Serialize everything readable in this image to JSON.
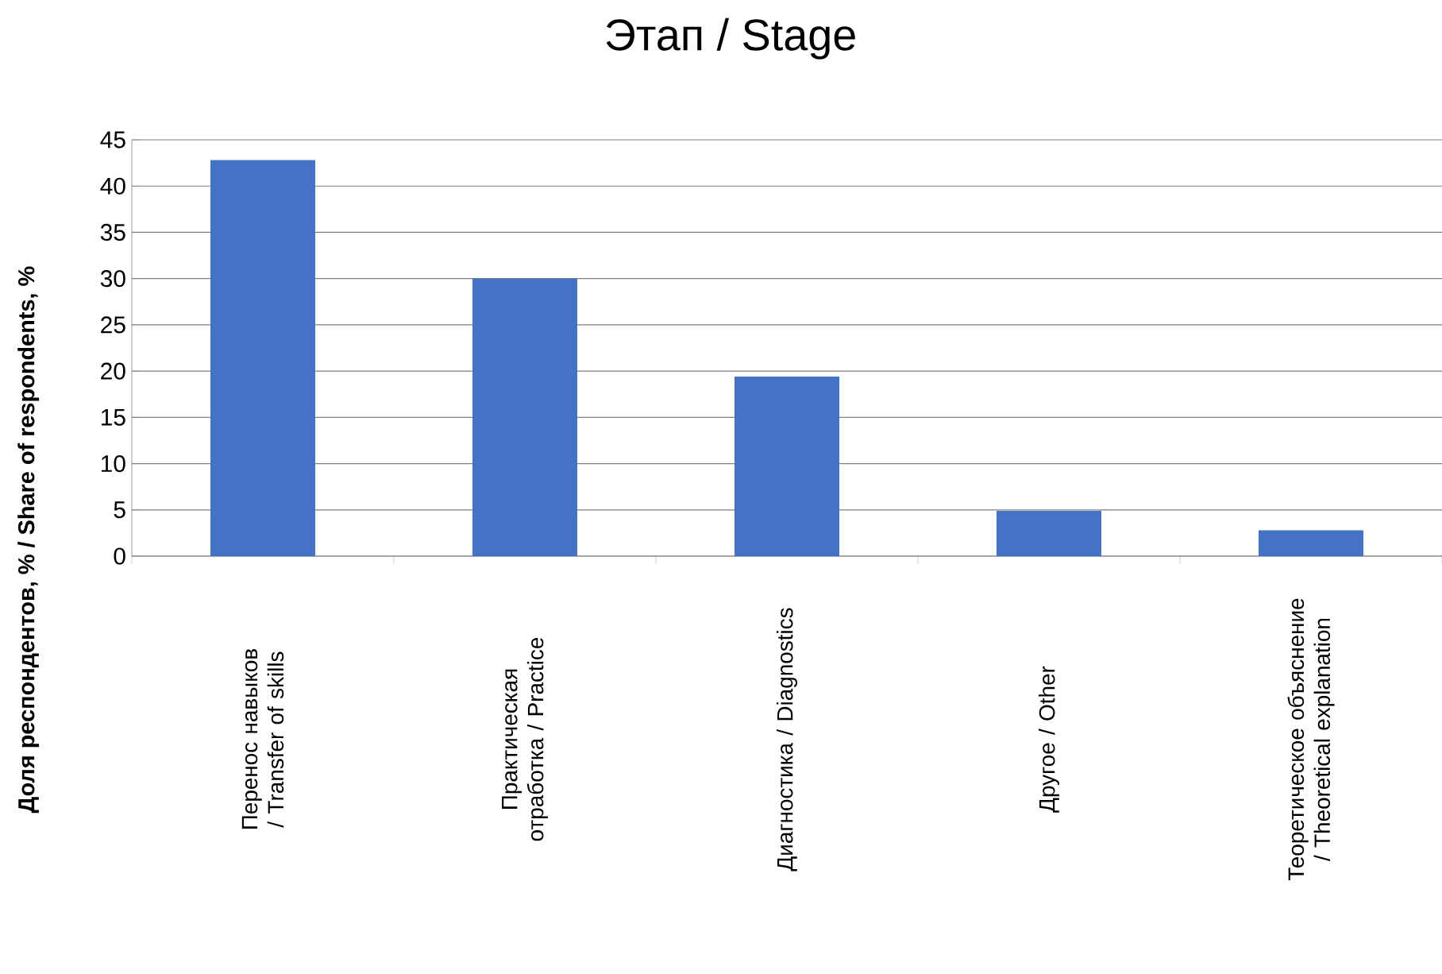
{
  "chart_data": {
    "type": "bar",
    "title": "Этап / Stage",
    "ylabel": "Доля респондентов, % / Share of respondents, %",
    "categories": [
      "Перенос навыков / Transfer of skills",
      "Практическая отработка / Practice",
      "Диагностика / Diagnostics",
      "Другое / Other",
      "Теоретическое объяснение / Theoretical explanation"
    ],
    "values": [
      42.8,
      30,
      19.4,
      4.9,
      2.8
    ],
    "color": "#4472c4",
    "ylim": [
      0,
      45
    ],
    "yticks": [
      0,
      5,
      10,
      15,
      20,
      25,
      30,
      35,
      40,
      45
    ],
    "grid": "y"
  }
}
